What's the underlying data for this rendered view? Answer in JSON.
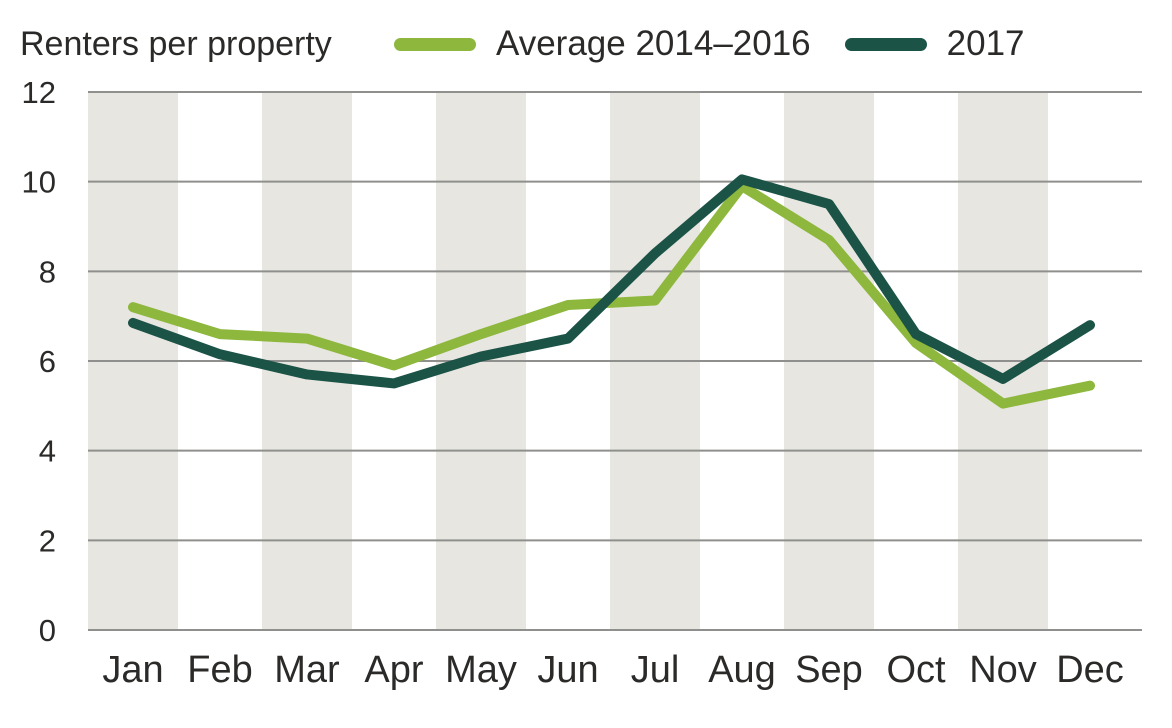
{
  "header": {
    "title": "Renters per property",
    "legend": [
      {
        "label": "Average 2014–2016",
        "color": "#8DB73D"
      },
      {
        "label": "2017",
        "color": "#1B5347"
      }
    ]
  },
  "chart_data": {
    "type": "line",
    "title": "Renters per property",
    "x": [
      "Jan",
      "Feb",
      "Mar",
      "Apr",
      "May",
      "Jun",
      "Jul",
      "Aug",
      "Sep",
      "Oct",
      "Nov",
      "Dec"
    ],
    "series": [
      {
        "name": "Average 2014–2016",
        "color": "#8DB73D",
        "values": [
          7.2,
          6.6,
          6.5,
          5.9,
          6.6,
          7.25,
          7.35,
          9.9,
          8.7,
          6.4,
          5.05,
          5.45
        ]
      },
      {
        "name": "2017",
        "color": "#1B5347",
        "values": [
          6.85,
          6.15,
          5.7,
          5.5,
          6.1,
          6.5,
          8.4,
          10.05,
          9.5,
          6.6,
          5.6,
          6.8
        ]
      }
    ],
    "y_ticks": [
      0,
      2,
      4,
      6,
      8,
      10,
      12
    ],
    "ylim": [
      0,
      12
    ],
    "xlabel": "",
    "ylabel": "",
    "grid": "horizontal",
    "gridline_color": "#8f8f8d",
    "band_months": [
      "Jan",
      "Mar",
      "May",
      "Jul",
      "Sep",
      "Nov"
    ],
    "band_color": "#e8e6e0",
    "legend_position": "top"
  }
}
